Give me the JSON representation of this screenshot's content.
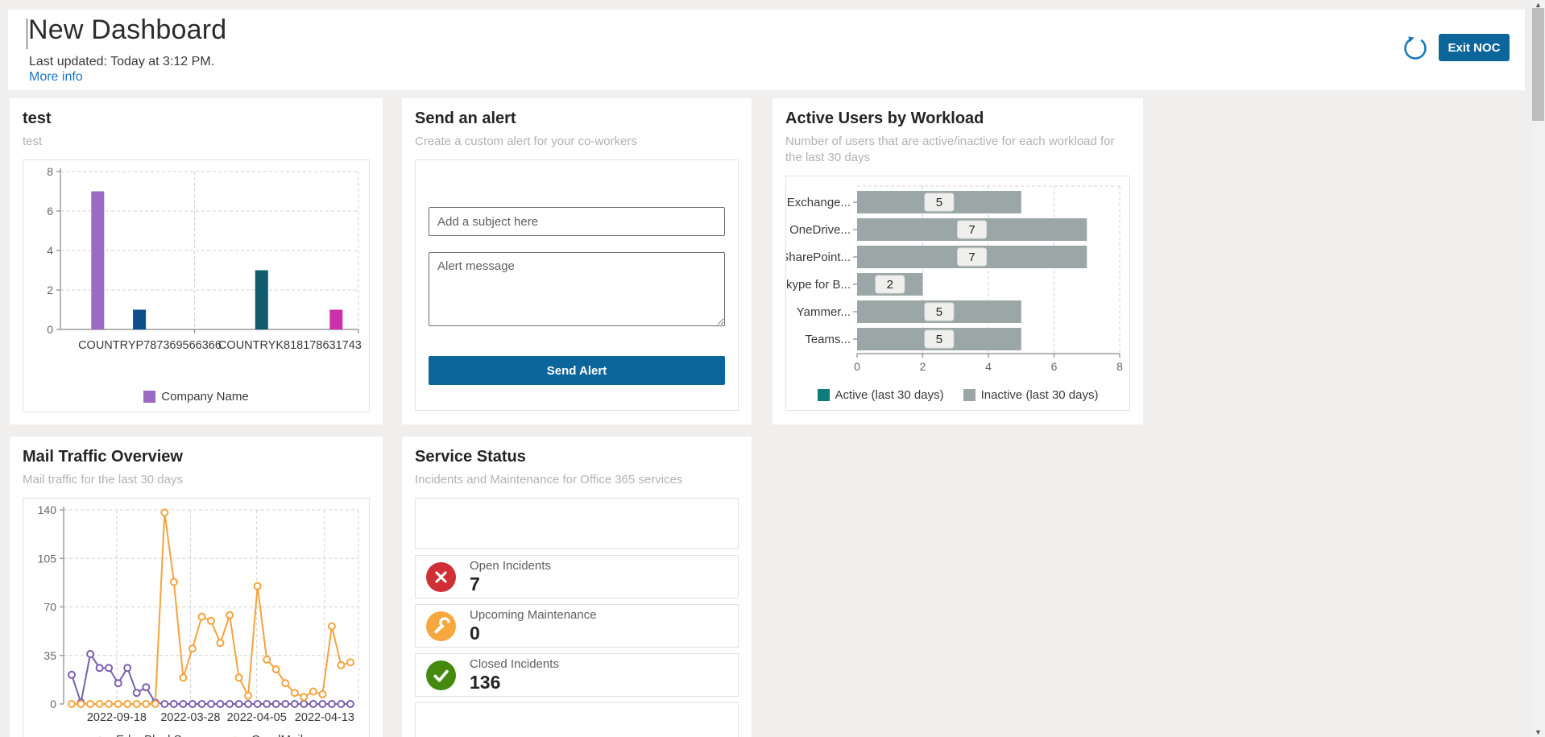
{
  "header": {
    "title": "New Dashboard",
    "last_updated": "Last updated: Today at 3:12 PM.",
    "more_info": "More info",
    "refresh_icon": "refresh-icon",
    "exit_button": "Exit NOC",
    "accent_color": "#0c669b",
    "link_color": "#1a76c2"
  },
  "cards": {
    "test": {
      "title": "test",
      "subtitle": "test"
    },
    "alert": {
      "title": "Send an alert",
      "subtitle": "Create a custom alert for your co-workers",
      "subject_placeholder": "Add a subject here",
      "message_placeholder": "Alert message",
      "send_button": "Send Alert"
    },
    "workload": {
      "title": "Active Users by Workload",
      "subtitle": "Number of users that are active/inactive for each workload for the last 30 days"
    },
    "mail": {
      "title": "Mail Traffic Overview",
      "subtitle": "Mail traffic for the last 30 days"
    },
    "status": {
      "title": "Service Status",
      "subtitle": "Incidents and Maintenance for Office 365 services",
      "rows": [
        {
          "icon": "error-circle-icon",
          "color": "#d02f35",
          "label": "Open Incidents",
          "value": "7"
        },
        {
          "icon": "maintenance-wrench-icon",
          "color": "#f6a83f",
          "label": "Upcoming Maintenance",
          "value": "0"
        },
        {
          "icon": "check-circle-icon",
          "color": "#458a0f",
          "label": "Closed Incidents",
          "value": "136"
        }
      ]
    }
  },
  "chart_data": [
    {
      "id": "test-bar-chart",
      "type": "bar",
      "title": "test",
      "categories": [
        "COUNTRYP787369566366",
        "COUNTRYK818178631743"
      ],
      "groups": [
        {
          "category": "COUNTRYP787369566366",
          "bars": [
            {
              "value": 7,
              "color": "#9b6bc3"
            },
            {
              "value": 1,
              "color": "#0d4f8b"
            }
          ]
        },
        {
          "category": "COUNTRYK818178631743",
          "bars": [
            {
              "value": 3,
              "color": "#0f5c6d"
            },
            {
              "value": 1,
              "color": "#cb2fa9"
            }
          ]
        }
      ],
      "ylim": [
        0,
        8
      ],
      "yticks": [
        0,
        2,
        4,
        6,
        8
      ],
      "grid": true,
      "legend_position": "bottom",
      "legend": [
        {
          "label": "Company Name",
          "color": "#9b6bc3"
        }
      ]
    },
    {
      "id": "workload-bar-chart",
      "type": "bar",
      "orientation": "horizontal",
      "title": "Active Users by Workload",
      "categories": [
        "Exchange...",
        "OneDrive...",
        "SharePoint...",
        "Skype for B...",
        "Yammer...",
        "Teams..."
      ],
      "values": [
        5,
        7,
        7,
        2,
        5,
        5
      ],
      "xlim": [
        0,
        8
      ],
      "xticks": [
        0,
        2,
        4,
        6,
        8
      ],
      "bar_color": "#9ba6a6",
      "grid": true,
      "legend_position": "bottom",
      "legend": [
        {
          "label": "Active (last 30 days)",
          "color": "#0e7c7b"
        },
        {
          "label": "Inactive (last 30 days)",
          "color": "#9ba6a6"
        }
      ]
    },
    {
      "id": "mail-line-chart",
      "type": "line",
      "title": "Mail Traffic Overview",
      "xticks": [
        "2022-09-18",
        "2022-03-28",
        "2022-04-05",
        "2022-04-13"
      ],
      "yticks": [
        0,
        35,
        70,
        105,
        140
      ],
      "ylim": [
        0,
        140
      ],
      "grid": true,
      "legend_position": "bottom",
      "series": [
        {
          "name": "EdgeBlockSpam",
          "color": "#7a5fb0",
          "values": [
            21,
            1,
            36,
            26,
            26,
            15,
            26,
            8,
            12,
            1,
            0,
            0,
            0,
            0,
            0,
            0,
            0,
            0,
            0,
            0,
            0,
            0,
            0,
            0,
            0,
            0,
            0,
            0,
            0,
            0,
            0
          ]
        },
        {
          "name": "GoodMail",
          "color": "#f5a33c",
          "values": [
            0,
            0,
            0,
            0,
            0,
            0,
            0,
            0,
            0,
            0,
            138,
            88,
            19,
            40,
            63,
            60,
            44,
            64,
            19,
            6,
            85,
            32,
            25,
            15,
            8,
            5,
            9,
            7,
            56,
            28,
            30
          ]
        }
      ]
    }
  ]
}
